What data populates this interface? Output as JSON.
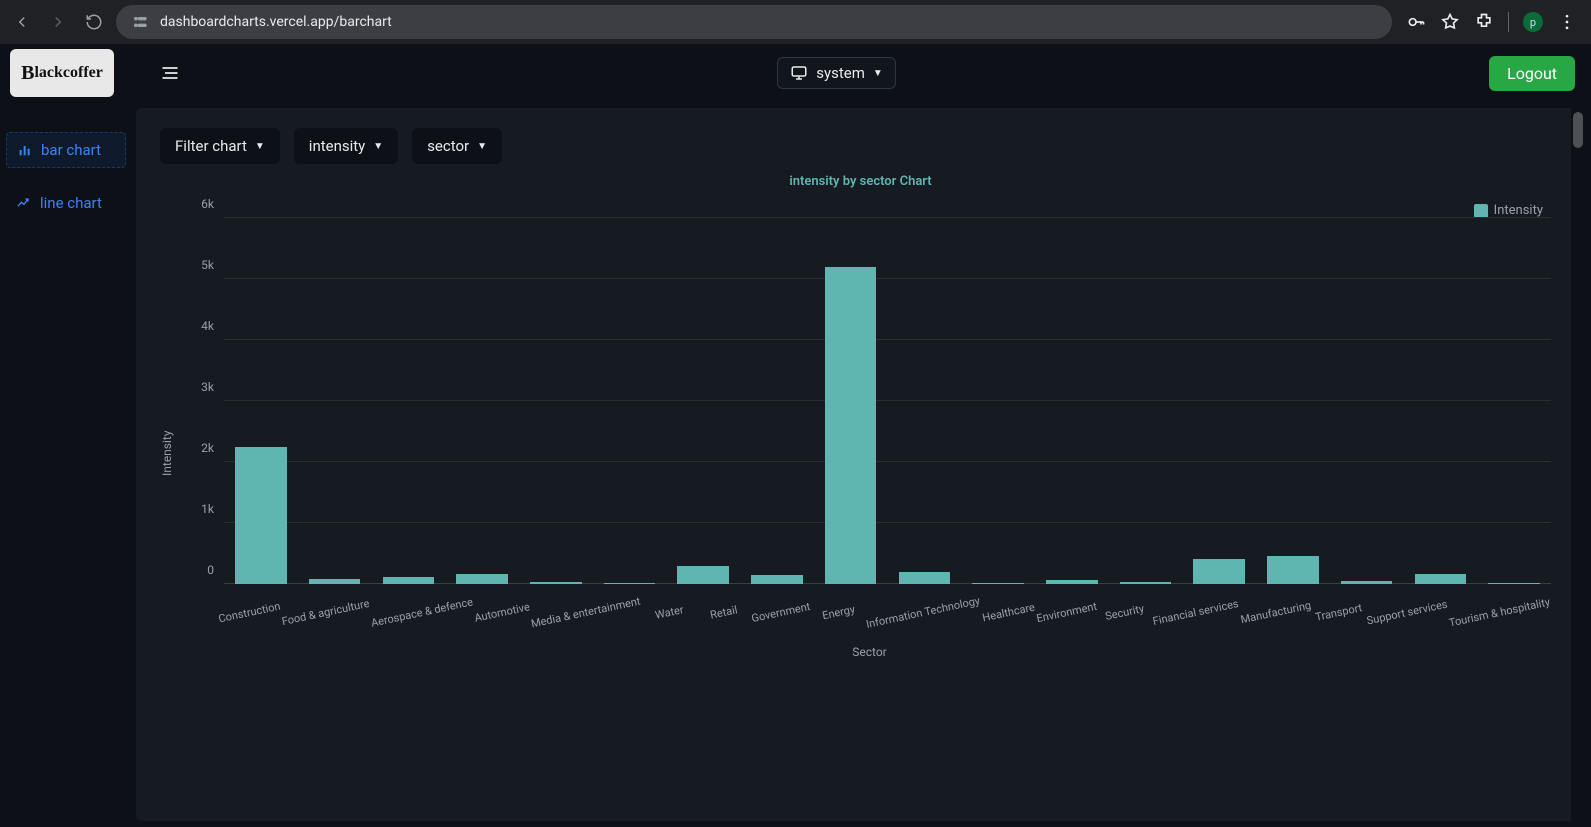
{
  "browser": {
    "url": "dashboardcharts.vercel.app/barchart",
    "profile_letter": "p"
  },
  "header": {
    "logo_text": "Blackcoffer",
    "theme_label": "system",
    "logout_label": "Logout"
  },
  "sidebar": {
    "items": [
      {
        "label": "bar chart",
        "icon": "bar-chart-icon",
        "active": true
      },
      {
        "label": "line chart",
        "icon": "line-chart-icon",
        "active": false
      }
    ]
  },
  "filters": {
    "items": [
      {
        "label": "Filter chart"
      },
      {
        "label": "intensity"
      },
      {
        "label": "sector"
      }
    ]
  },
  "chart": {
    "type": "bar",
    "title": "intensity by sector Chart",
    "title_color": "#5fb5b0",
    "legend_label": "Intensity",
    "legend_text_color": "#9aa0a6",
    "ylabel": "Intensity",
    "xlabel": "Sector",
    "bar_color": "#5fb5b0",
    "grid_color": "#2a2e33",
    "background_color": "#161b22",
    "ylim": [
      0,
      6000
    ],
    "yticks": [
      {
        "value": 0,
        "label": "0"
      },
      {
        "value": 1000,
        "label": "1k"
      },
      {
        "value": 2000,
        "label": "2k"
      },
      {
        "value": 3000,
        "label": "3k"
      },
      {
        "value": 4000,
        "label": "4k"
      },
      {
        "value": 5000,
        "label": "5k"
      },
      {
        "value": 6000,
        "label": "6k"
      }
    ],
    "categories": [
      "Construction",
      "Food & agriculture",
      "Aerospace & defence",
      "Automotive",
      "Media & entertainment",
      "Water",
      "Retail",
      "Government",
      "Energy",
      "Information Technology",
      "Healthcare",
      "Environment",
      "Security",
      "Financial services",
      "Manufacturing",
      "Transport",
      "Support services",
      "Tourism & hospitality"
    ],
    "values": [
      2250,
      80,
      120,
      160,
      30,
      10,
      300,
      150,
      5200,
      200,
      20,
      70,
      30,
      410,
      460,
      50,
      170,
      20
    ],
    "bar_width": 0.7,
    "xlabel_rotation_deg": -12,
    "tick_fontsize": 12,
    "label_fontsize": 12
  }
}
